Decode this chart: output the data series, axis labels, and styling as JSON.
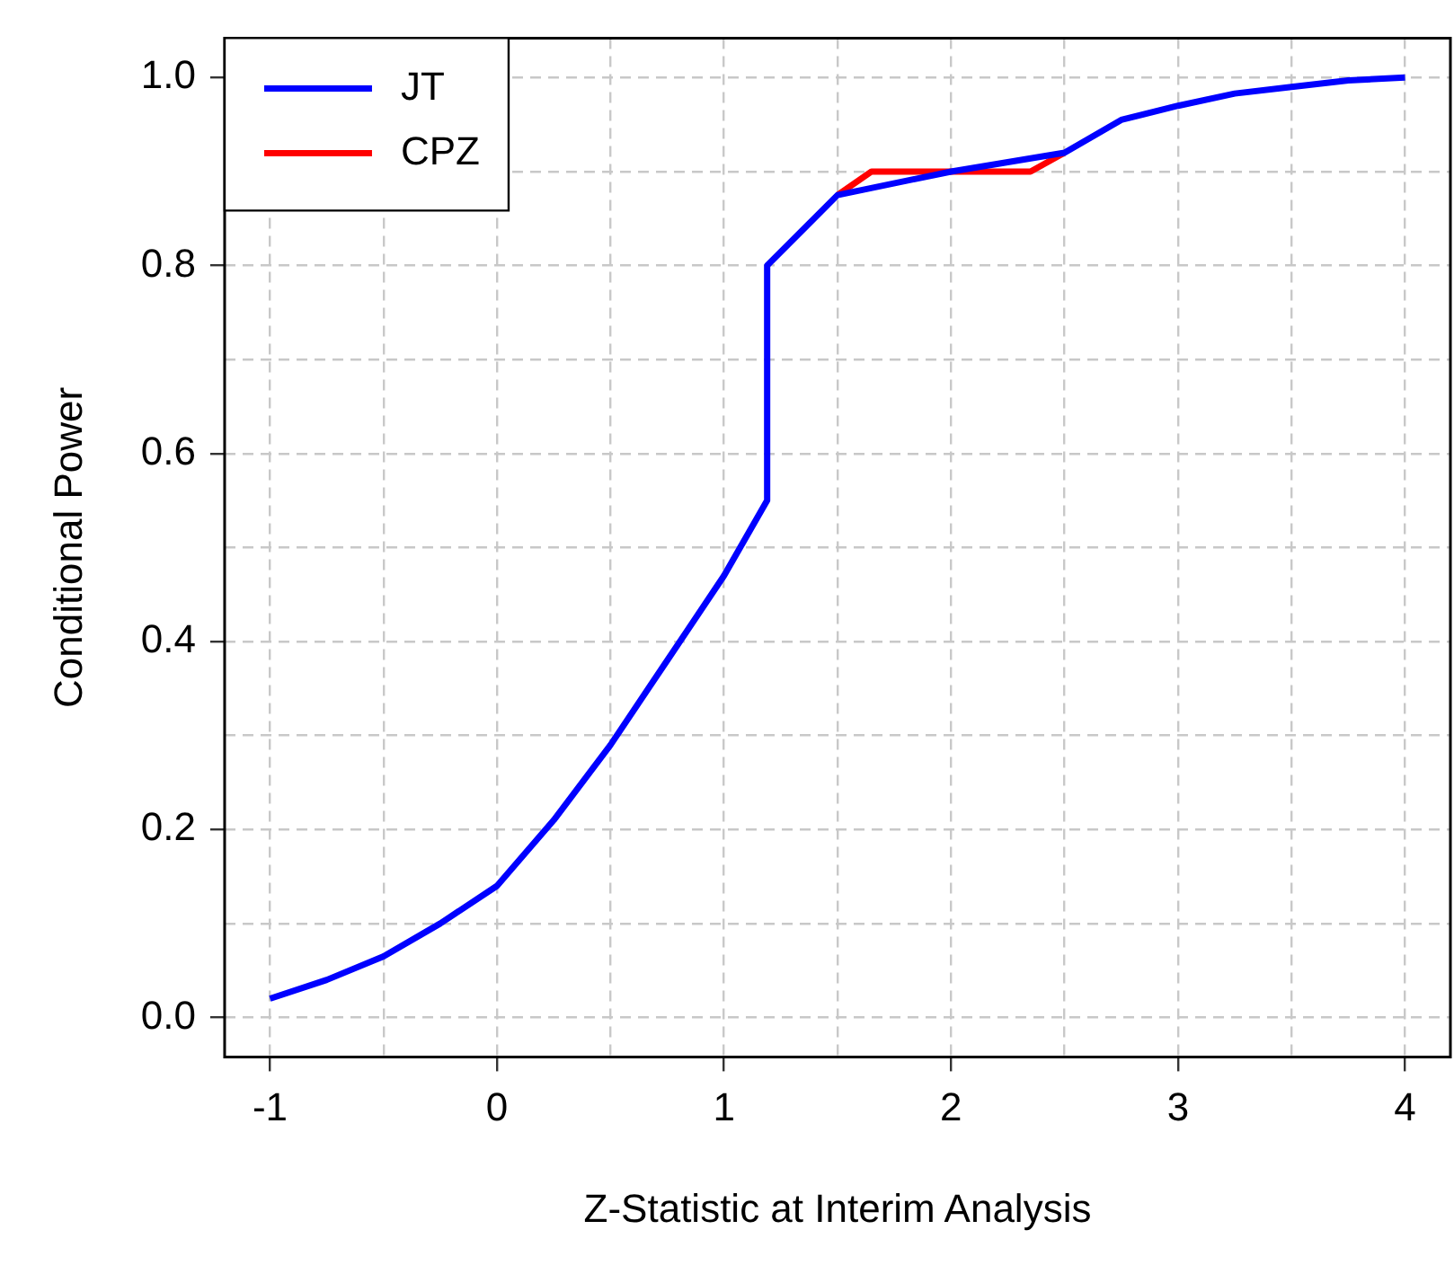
{
  "chart_data": {
    "type": "line",
    "xlabel": "Z-Statistic at Interim Analysis",
    "ylabel": "Conditional Power",
    "xlim": [
      -1.2,
      4.2
    ],
    "ylim": [
      -0.042,
      1.042
    ],
    "xticks": [
      -1,
      {
        "value": -0.5,
        "label": null
      },
      0,
      {
        "value": 0.5,
        "label": null
      },
      1,
      {
        "value": 1.5,
        "label": null
      },
      2,
      {
        "value": 2.5,
        "label": null
      },
      3,
      {
        "value": 3.5,
        "label": null
      },
      4
    ],
    "yticks": [
      {
        "value": 0,
        "label": "0.0"
      },
      {
        "value": 0.1,
        "label": null
      },
      0.2,
      {
        "value": 0.3,
        "label": null
      },
      0.4,
      {
        "value": 0.5,
        "label": null
      },
      0.6,
      {
        "value": 0.7,
        "label": null
      },
      0.8,
      {
        "value": 0.9,
        "label": null
      },
      {
        "value": 1,
        "label": "1.0"
      }
    ],
    "grid": true,
    "legend": "top left",
    "marker": "none",
    "line_style": "solid",
    "series": [
      {
        "name": "CPZ",
        "color": "#ff0000",
        "x": [
          1.5,
          1.65,
          2.35,
          2.5
        ],
        "values": [
          0.875,
          0.9,
          0.9,
          0.92
        ]
      },
      {
        "name": "JT",
        "color": "#0000ff",
        "x": [
          -1,
          -0.75,
          -0.5,
          -0.25,
          0,
          0.25,
          0.5,
          0.75,
          1,
          1.19,
          1.19,
          1.5,
          2,
          2.5,
          2.75,
          3,
          3.25,
          3.5,
          3.75,
          4
        ],
        "values": [
          0.02,
          0.04,
          0.065,
          0.1,
          0.14,
          0.21,
          0.29,
          0.38,
          0.47,
          0.55,
          0.8,
          0.875,
          0.9,
          0.92,
          0.955,
          0.97,
          0.983,
          0.99,
          0.997,
          1.0
        ]
      }
    ]
  }
}
